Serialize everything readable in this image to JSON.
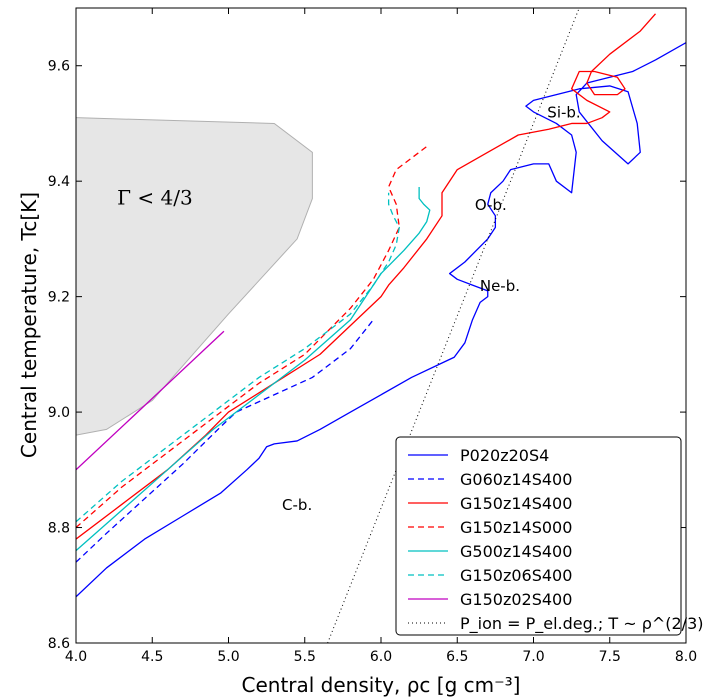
{
  "chart_data": {
    "type": "line",
    "xlabel": "Central density, ρc [g cm⁻³]",
    "ylabel": "Central temperature, Tc[K]",
    "xlim": [
      4.0,
      8.0
    ],
    "ylim": [
      8.6,
      9.7
    ],
    "xticks": [
      "4.0",
      "4.5",
      "5.0",
      "5.5",
      "6.0",
      "6.5",
      "7.0",
      "7.5",
      "8.0"
    ],
    "yticks": [
      "8.6",
      "8.8",
      "9.0",
      "9.2",
      "9.4",
      "9.6"
    ],
    "grid": false,
    "legend_position": "bottom-right",
    "region": {
      "label": "Γ < 4/3",
      "fill": "#e6e6e6",
      "stroke": "#b0b0b0",
      "boundary": [
        [
          4.0,
          9.51
        ],
        [
          5.3,
          9.5
        ],
        [
          5.55,
          9.45
        ],
        [
          5.55,
          9.37
        ],
        [
          5.45,
          9.3
        ],
        [
          5.0,
          9.17
        ],
        [
          4.5,
          9.02
        ],
        [
          4.2,
          8.97
        ],
        [
          4.0,
          8.96
        ]
      ]
    },
    "annotations": [
      {
        "text": "C-b.",
        "x": 5.45,
        "y": 8.83
      },
      {
        "text": "Ne-b.",
        "x": 6.78,
        "y": 9.21
      },
      {
        "text": "O-b.",
        "x": 6.72,
        "y": 9.35
      },
      {
        "text": "Si-b.",
        "x": 7.2,
        "y": 9.51
      }
    ],
    "series": [
      {
        "name": "P020z20S4",
        "color": "#0000ff",
        "dash": "solid",
        "x": [
          4.0,
          4.2,
          4.45,
          4.7,
          4.95,
          5.12,
          5.2,
          5.25,
          5.3,
          5.45,
          5.6,
          5.8,
          6.0,
          6.2,
          6.4,
          6.48,
          6.55,
          6.6,
          6.65,
          6.7,
          6.7,
          6.6,
          6.5,
          6.45,
          6.55,
          6.7,
          6.75,
          6.75,
          6.7,
          6.72,
          6.8,
          6.85,
          7.0,
          7.1,
          7.15,
          7.25,
          7.28,
          7.25,
          7.15,
          7.0,
          6.95,
          7.0,
          7.15,
          7.3,
          7.5,
          7.62,
          7.68,
          7.7,
          7.62,
          7.45,
          7.3,
          7.28,
          7.35,
          7.5,
          7.65,
          7.8,
          8.0
        ],
        "y": [
          8.68,
          8.73,
          8.78,
          8.82,
          8.86,
          8.9,
          8.92,
          8.94,
          8.945,
          8.95,
          8.97,
          9.0,
          9.03,
          9.06,
          9.085,
          9.095,
          9.12,
          9.16,
          9.19,
          9.2,
          9.21,
          9.22,
          9.23,
          9.24,
          9.26,
          9.3,
          9.32,
          9.34,
          9.36,
          9.38,
          9.4,
          9.42,
          9.43,
          9.43,
          9.4,
          9.38,
          9.45,
          9.48,
          9.5,
          9.52,
          9.53,
          9.54,
          9.55,
          9.56,
          9.565,
          9.555,
          9.5,
          9.45,
          9.43,
          9.47,
          9.52,
          9.55,
          9.57,
          9.58,
          9.59,
          9.61,
          9.64
        ]
      },
      {
        "name": "G060z14S400",
        "color": "#0000ff",
        "dash": "6,4",
        "x": [
          4.0,
          4.2,
          4.45,
          4.7,
          4.95,
          5.05,
          5.3,
          5.55,
          5.8,
          5.95
        ],
        "y": [
          8.74,
          8.79,
          8.85,
          8.91,
          8.975,
          9.0,
          9.03,
          9.06,
          9.11,
          9.16
        ]
      },
      {
        "name": "G150z14S400",
        "color": "#ff0000",
        "dash": "solid",
        "x": [
          4.0,
          4.3,
          4.6,
          4.85,
          5.0,
          5.3,
          5.6,
          5.8,
          6.0,
          6.05,
          6.15,
          6.3,
          6.4,
          6.4,
          6.5,
          6.7,
          6.9,
          7.1,
          7.25,
          7.35,
          7.45,
          7.5,
          7.35,
          7.25,
          7.3,
          7.4,
          7.55,
          7.6,
          7.55,
          7.4,
          7.35,
          7.38,
          7.5,
          7.7,
          7.8
        ],
        "y": [
          8.78,
          8.84,
          8.9,
          8.96,
          9.0,
          9.05,
          9.1,
          9.15,
          9.2,
          9.22,
          9.25,
          9.3,
          9.34,
          9.38,
          9.42,
          9.45,
          9.48,
          9.49,
          9.5,
          9.5,
          9.51,
          9.52,
          9.54,
          9.56,
          9.59,
          9.59,
          9.58,
          9.56,
          9.55,
          9.55,
          9.57,
          9.59,
          9.62,
          9.66,
          9.69
        ]
      },
      {
        "name": "G150z14S000",
        "color": "#ff0000",
        "dash": "6,4",
        "x": [
          4.0,
          4.3,
          4.6,
          4.9,
          5.2,
          5.5,
          5.8,
          5.95,
          6.05,
          6.12,
          6.1,
          6.05,
          6.1,
          6.2,
          6.3
        ],
        "y": [
          8.8,
          8.87,
          8.93,
          8.99,
          9.05,
          9.1,
          9.18,
          9.23,
          9.28,
          9.32,
          9.36,
          9.39,
          9.42,
          9.44,
          9.46
        ]
      },
      {
        "name": "G500z14S400",
        "color": "#00c0c0",
        "dash": "solid",
        "x": [
          4.0,
          4.3,
          4.6,
          4.9,
          5.2,
          5.5,
          5.8,
          6.0,
          6.15,
          6.25,
          6.3,
          6.32,
          6.28,
          6.25,
          6.25
        ],
        "y": [
          8.76,
          8.83,
          8.9,
          8.97,
          9.03,
          9.09,
          9.16,
          9.24,
          9.28,
          9.31,
          9.33,
          9.35,
          9.36,
          9.37,
          9.39
        ]
      },
      {
        "name": "G150z06S400",
        "color": "#00c0c0",
        "dash": "6,4",
        "x": [
          4.0,
          4.3,
          4.6,
          4.9,
          5.2,
          5.5,
          5.8,
          5.95,
          6.05,
          6.1,
          6.12,
          6.08,
          6.05,
          6.05
        ],
        "y": [
          8.81,
          8.88,
          8.94,
          9.0,
          9.06,
          9.11,
          9.17,
          9.22,
          9.26,
          9.29,
          9.32,
          9.34,
          9.36,
          9.38
        ]
      },
      {
        "name": "G150z02S400",
        "color": "#c000c0",
        "dash": "solid",
        "x": [
          4.0,
          4.97
        ],
        "y": [
          8.9,
          9.14
        ]
      },
      {
        "name": "P_ion = P_el.deg.; T ~ ρ^(2/3)",
        "color": "#000000",
        "dash": "1,3",
        "x": [
          5.65,
          8.0
        ],
        "y": [
          8.6,
          10.167
        ]
      }
    ]
  }
}
